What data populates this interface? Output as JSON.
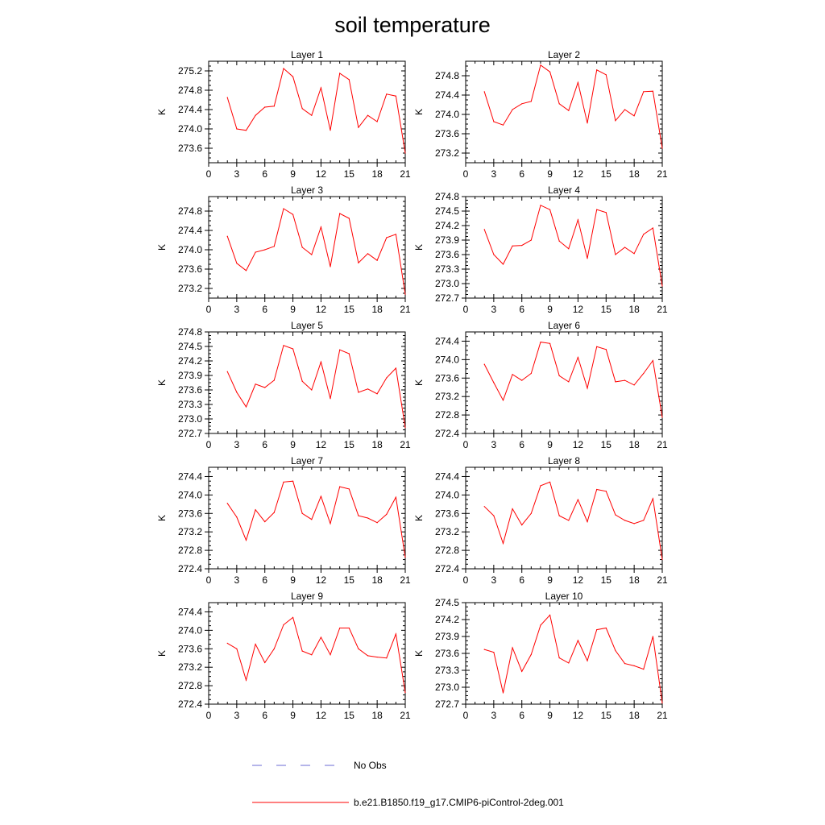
{
  "title": "soil temperature",
  "colors": {
    "model_line": "#ff0000",
    "obs_line": "#6b6bd6",
    "axis": "#000000"
  },
  "legend": [
    {
      "label": "No Obs",
      "style": "dashed",
      "color": "#6b6bd6"
    },
    {
      "label": "b.e21.B1850.f19_g17.CMIP6-piControl-2deg.001",
      "style": "solid",
      "color": "#ff0000"
    }
  ],
  "chart_data": [
    {
      "type": "line",
      "title": "Layer 1",
      "xlabel": "",
      "ylabel": "K",
      "xlim": [
        0,
        21
      ],
      "xticks": [
        0,
        3,
        6,
        9,
        12,
        15,
        18,
        21
      ],
      "ylim": [
        273.3,
        275.4
      ],
      "yticks": [
        "273.6",
        "274.0",
        "274.4",
        "274.8",
        "275.2"
      ],
      "x": [
        2,
        3,
        4,
        5,
        6,
        7,
        8,
        9,
        10,
        11,
        12,
        13,
        14,
        15,
        16,
        17,
        18,
        19,
        20,
        21
      ],
      "series": [
        {
          "name": "b.e21.B1850.f19_g17.CMIP6-piControl-2deg.001",
          "values": [
            274.65,
            274.0,
            273.97,
            274.28,
            274.45,
            274.47,
            275.25,
            275.08,
            274.42,
            274.28,
            274.85,
            273.97,
            275.15,
            275.02,
            274.03,
            274.28,
            274.15,
            274.72,
            274.68,
            273.5
          ]
        }
      ]
    },
    {
      "type": "line",
      "title": "Layer 2",
      "xlabel": "",
      "ylabel": "K",
      "xlim": [
        0,
        21
      ],
      "xticks": [
        0,
        3,
        6,
        9,
        12,
        15,
        18,
        21
      ],
      "ylim": [
        273.0,
        275.1
      ],
      "yticks": [
        "273.2",
        "273.6",
        "274.0",
        "274.4",
        "274.8"
      ],
      "x": [
        2,
        3,
        4,
        5,
        6,
        7,
        8,
        9,
        10,
        11,
        12,
        13,
        14,
        15,
        16,
        17,
        18,
        19,
        20,
        21
      ],
      "series": [
        {
          "name": "b.e21.B1850.f19_g17.CMIP6-piControl-2deg.001",
          "values": [
            274.47,
            273.85,
            273.78,
            274.1,
            274.22,
            274.27,
            275.02,
            274.88,
            274.22,
            274.08,
            274.66,
            273.82,
            274.92,
            274.82,
            273.87,
            274.1,
            273.97,
            274.47,
            274.48,
            273.3
          ]
        }
      ]
    },
    {
      "type": "line",
      "title": "Layer 3",
      "xlabel": "",
      "ylabel": "K",
      "xlim": [
        0,
        21
      ],
      "xticks": [
        0,
        3,
        6,
        9,
        12,
        15,
        18,
        21
      ],
      "ylim": [
        273.0,
        275.1
      ],
      "yticks": [
        "273.2",
        "273.6",
        "274.0",
        "274.4",
        "274.8"
      ],
      "x": [
        2,
        3,
        4,
        5,
        6,
        7,
        8,
        9,
        10,
        11,
        12,
        13,
        14,
        15,
        16,
        17,
        18,
        19,
        20,
        21
      ],
      "series": [
        {
          "name": "b.e21.B1850.f19_g17.CMIP6-piControl-2deg.001",
          "values": [
            274.28,
            273.72,
            273.57,
            273.95,
            274.0,
            274.07,
            274.85,
            274.73,
            274.05,
            273.9,
            274.47,
            273.65,
            274.75,
            274.65,
            273.73,
            273.92,
            273.78,
            274.25,
            274.32,
            273.08
          ]
        }
      ]
    },
    {
      "type": "line",
      "title": "Layer 4",
      "xlabel": "",
      "ylabel": "K",
      "xlim": [
        0,
        21
      ],
      "xticks": [
        0,
        3,
        6,
        9,
        12,
        15,
        18,
        21
      ],
      "ylim": [
        272.7,
        274.8
      ],
      "yticks": [
        "272.7",
        "273.0",
        "273.3",
        "273.6",
        "273.9",
        "274.2",
        "274.5",
        "274.8"
      ],
      "x": [
        2,
        3,
        4,
        5,
        6,
        7,
        8,
        9,
        10,
        11,
        12,
        13,
        14,
        15,
        16,
        17,
        18,
        19,
        20,
        21
      ],
      "series": [
        {
          "name": "b.e21.B1850.f19_g17.CMIP6-piControl-2deg.001",
          "values": [
            274.12,
            273.6,
            273.4,
            273.78,
            273.79,
            273.9,
            274.62,
            274.53,
            273.88,
            273.72,
            274.32,
            273.52,
            274.53,
            274.47,
            273.6,
            273.75,
            273.62,
            274.02,
            274.15,
            272.95
          ]
        }
      ]
    },
    {
      "type": "line",
      "title": "Layer 5",
      "xlabel": "",
      "ylabel": "K",
      "xlim": [
        0,
        21
      ],
      "xticks": [
        0,
        3,
        6,
        9,
        12,
        15,
        18,
        21
      ],
      "ylim": [
        272.7,
        274.8
      ],
      "yticks": [
        "272.7",
        "273.0",
        "273.3",
        "273.6",
        "273.9",
        "274.2",
        "274.5",
        "274.8"
      ],
      "x": [
        2,
        3,
        4,
        5,
        6,
        7,
        8,
        9,
        10,
        11,
        12,
        13,
        14,
        15,
        16,
        17,
        18,
        19,
        20,
        21
      ],
      "series": [
        {
          "name": "b.e21.B1850.f19_g17.CMIP6-piControl-2deg.001",
          "values": [
            273.98,
            273.55,
            273.25,
            273.72,
            273.65,
            273.8,
            274.52,
            274.45,
            273.78,
            273.6,
            274.18,
            273.42,
            274.43,
            274.35,
            273.55,
            273.62,
            273.52,
            273.85,
            274.05,
            272.82
          ]
        }
      ]
    },
    {
      "type": "line",
      "title": "Layer 6",
      "xlabel": "",
      "ylabel": "K",
      "xlim": [
        0,
        21
      ],
      "xticks": [
        0,
        3,
        6,
        9,
        12,
        15,
        18,
        21
      ],
      "ylim": [
        272.4,
        274.6
      ],
      "yticks": [
        "272.4",
        "272.8",
        "273.2",
        "273.6",
        "274.0",
        "274.4"
      ],
      "x": [
        2,
        3,
        4,
        5,
        6,
        7,
        8,
        9,
        10,
        11,
        12,
        13,
        14,
        15,
        16,
        17,
        18,
        19,
        20,
        21
      ],
      "series": [
        {
          "name": "b.e21.B1850.f19_g17.CMIP6-piControl-2deg.001",
          "values": [
            273.9,
            273.5,
            273.12,
            273.68,
            273.55,
            273.7,
            274.38,
            274.35,
            273.65,
            273.52,
            274.05,
            273.38,
            274.28,
            274.22,
            273.52,
            273.55,
            273.45,
            273.7,
            273.98,
            272.75
          ]
        }
      ]
    },
    {
      "type": "line",
      "title": "Layer 7",
      "xlabel": "",
      "ylabel": "K",
      "xlim": [
        0,
        21
      ],
      "xticks": [
        0,
        3,
        6,
        9,
        12,
        15,
        18,
        21
      ],
      "ylim": [
        272.4,
        274.6
      ],
      "yticks": [
        "272.4",
        "272.8",
        "273.2",
        "273.6",
        "274.0",
        "274.4"
      ],
      "x": [
        2,
        3,
        4,
        5,
        6,
        7,
        8,
        9,
        10,
        11,
        12,
        13,
        14,
        15,
        16,
        17,
        18,
        19,
        20,
        21
      ],
      "series": [
        {
          "name": "b.e21.B1850.f19_g17.CMIP6-piControl-2deg.001",
          "values": [
            273.82,
            273.52,
            273.02,
            273.68,
            273.42,
            273.62,
            274.28,
            274.3,
            273.6,
            273.47,
            273.97,
            273.38,
            274.18,
            274.13,
            273.55,
            273.5,
            273.4,
            273.58,
            273.95,
            272.65
          ]
        }
      ]
    },
    {
      "type": "line",
      "title": "Layer 8",
      "xlabel": "",
      "ylabel": "K",
      "xlim": [
        0,
        21
      ],
      "xticks": [
        0,
        3,
        6,
        9,
        12,
        15,
        18,
        21
      ],
      "ylim": [
        272.4,
        274.6
      ],
      "yticks": [
        "272.4",
        "272.8",
        "273.2",
        "273.6",
        "274.0",
        "274.4"
      ],
      "x": [
        2,
        3,
        4,
        5,
        6,
        7,
        8,
        9,
        10,
        11,
        12,
        13,
        14,
        15,
        16,
        17,
        18,
        19,
        20,
        21
      ],
      "series": [
        {
          "name": "b.e21.B1850.f19_g17.CMIP6-piControl-2deg.001",
          "values": [
            273.75,
            273.55,
            272.95,
            273.7,
            273.35,
            273.6,
            274.2,
            274.28,
            273.55,
            273.45,
            273.9,
            273.42,
            274.12,
            274.08,
            273.57,
            273.45,
            273.38,
            273.45,
            273.92,
            272.6
          ]
        }
      ]
    },
    {
      "type": "line",
      "title": "Layer 9",
      "xlabel": "",
      "ylabel": "K",
      "xlim": [
        0,
        21
      ],
      "xticks": [
        0,
        3,
        6,
        9,
        12,
        15,
        18,
        21
      ],
      "ylim": [
        272.4,
        274.6
      ],
      "yticks": [
        "272.4",
        "272.8",
        "273.2",
        "273.6",
        "274.0",
        "274.4"
      ],
      "x": [
        2,
        3,
        4,
        5,
        6,
        7,
        8,
        9,
        10,
        11,
        12,
        13,
        14,
        15,
        16,
        17,
        18,
        19,
        20,
        21
      ],
      "series": [
        {
          "name": "b.e21.B1850.f19_g17.CMIP6-piControl-2deg.001",
          "values": [
            273.72,
            273.6,
            272.92,
            273.7,
            273.3,
            273.6,
            274.12,
            274.28,
            273.55,
            273.47,
            273.85,
            273.47,
            274.05,
            274.05,
            273.6,
            273.45,
            273.42,
            273.4,
            273.92,
            272.65
          ]
        }
      ]
    },
    {
      "type": "line",
      "title": "Layer 10",
      "xlabel": "",
      "ylabel": "K",
      "xlim": [
        0,
        21
      ],
      "xticks": [
        0,
        3,
        6,
        9,
        12,
        15,
        18,
        21
      ],
      "ylim": [
        272.7,
        274.5
      ],
      "yticks": [
        "272.7",
        "273.0",
        "273.3",
        "273.6",
        "273.9",
        "274.2",
        "274.5"
      ],
      "x": [
        2,
        3,
        4,
        5,
        6,
        7,
        8,
        9,
        10,
        11,
        12,
        13,
        14,
        15,
        16,
        17,
        18,
        19,
        20,
        21
      ],
      "series": [
        {
          "name": "b.e21.B1850.f19_g17.CMIP6-piControl-2deg.001",
          "values": [
            273.67,
            273.62,
            272.9,
            273.7,
            273.28,
            273.58,
            274.1,
            274.28,
            273.52,
            273.43,
            273.83,
            273.47,
            274.02,
            274.05,
            273.65,
            273.42,
            273.38,
            273.32,
            273.9,
            272.72
          ]
        }
      ]
    }
  ]
}
